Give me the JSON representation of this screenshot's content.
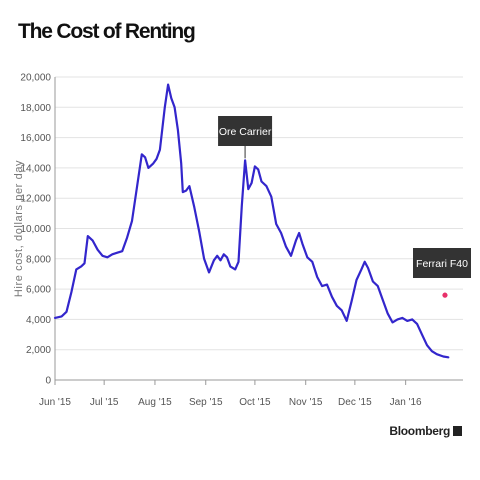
{
  "header": {
    "title": "The Cost of Renting"
  },
  "footer": {
    "source": "Bloomberg"
  },
  "colors": {
    "line": "#3326cc",
    "marker": "#e8306a",
    "annotation_bg": "#333333",
    "grid": "#e3e3e3",
    "axis": "#999999"
  },
  "chart_data": {
    "type": "line",
    "title": "The Cost of Renting",
    "xlabel": "",
    "ylabel": "Hire cost, dollars per day",
    "ylim": [
      0,
      20000
    ],
    "yticks": [
      0,
      2000,
      4000,
      6000,
      8000,
      10000,
      12000,
      14000,
      16000,
      18000,
      20000
    ],
    "ytick_labels": [
      "0",
      "2,000",
      "4,000",
      "6,000",
      "8,000",
      "10,000",
      "12,000",
      "14,000",
      "16,000",
      "18,000",
      "20,000"
    ],
    "xlim": [
      "2015-06-01",
      "2016-02-05"
    ],
    "xticks": [
      "2015-06-01",
      "2015-07-01",
      "2015-08-01",
      "2015-09-01",
      "2015-10-01",
      "2015-11-01",
      "2015-12-01",
      "2016-01-01"
    ],
    "xtick_labels": [
      "Jun '15",
      "Jul '15",
      "Aug '15",
      "Sep '15",
      "Oct '15",
      "Nov '15",
      "Dec '15",
      "Jan '16"
    ],
    "grid": true,
    "series": [
      {
        "color": "#3326cc",
        "points": [
          [
            "2015-06-01",
            4100
          ],
          [
            "2015-06-05",
            4200
          ],
          [
            "2015-06-08",
            4500
          ],
          [
            "2015-06-11",
            5800
          ],
          [
            "2015-06-14",
            7300
          ],
          [
            "2015-06-17",
            7500
          ],
          [
            "2015-06-19",
            7700
          ],
          [
            "2015-06-21",
            9500
          ],
          [
            "2015-06-24",
            9200
          ],
          [
            "2015-06-27",
            8600
          ],
          [
            "2015-06-30",
            8200
          ],
          [
            "2015-07-03",
            8100
          ],
          [
            "2015-07-06",
            8300
          ],
          [
            "2015-07-09",
            8400
          ],
          [
            "2015-07-12",
            8500
          ],
          [
            "2015-07-15",
            9400
          ],
          [
            "2015-07-18",
            10500
          ],
          [
            "2015-07-21",
            12700
          ],
          [
            "2015-07-24",
            14900
          ],
          [
            "2015-07-26",
            14700
          ],
          [
            "2015-07-28",
            14000
          ],
          [
            "2015-07-31",
            14300
          ],
          [
            "2015-08-02",
            14600
          ],
          [
            "2015-08-04",
            15200
          ],
          [
            "2015-08-07",
            18000
          ],
          [
            "2015-08-09",
            19500
          ],
          [
            "2015-08-11",
            18600
          ],
          [
            "2015-08-13",
            18000
          ],
          [
            "2015-08-15",
            16500
          ],
          [
            "2015-08-17",
            14300
          ],
          [
            "2015-08-18",
            12400
          ],
          [
            "2015-08-20",
            12500
          ],
          [
            "2015-08-22",
            12800
          ],
          [
            "2015-08-25",
            11400
          ],
          [
            "2015-08-28",
            9800
          ],
          [
            "2015-08-31",
            8000
          ],
          [
            "2015-09-03",
            7100
          ],
          [
            "2015-09-06",
            7900
          ],
          [
            "2015-09-08",
            8200
          ],
          [
            "2015-09-10",
            7900
          ],
          [
            "2015-09-12",
            8300
          ],
          [
            "2015-09-14",
            8100
          ],
          [
            "2015-09-16",
            7500
          ],
          [
            "2015-09-19",
            7300
          ],
          [
            "2015-09-21",
            7800
          ],
          [
            "2015-09-23",
            11500
          ],
          [
            "2015-09-25",
            14500
          ],
          [
            "2015-09-27",
            12600
          ],
          [
            "2015-09-29",
            13000
          ],
          [
            "2015-10-01",
            14100
          ],
          [
            "2015-10-03",
            13900
          ],
          [
            "2015-10-05",
            13100
          ],
          [
            "2015-10-08",
            12800
          ],
          [
            "2015-10-11",
            12100
          ],
          [
            "2015-10-14",
            10300
          ],
          [
            "2015-10-17",
            9700
          ],
          [
            "2015-10-20",
            8800
          ],
          [
            "2015-10-23",
            8200
          ],
          [
            "2015-10-26",
            9200
          ],
          [
            "2015-10-28",
            9700
          ],
          [
            "2015-10-30",
            9000
          ],
          [
            "2015-11-02",
            8100
          ],
          [
            "2015-11-05",
            7800
          ],
          [
            "2015-11-08",
            6800
          ],
          [
            "2015-11-11",
            6200
          ],
          [
            "2015-11-14",
            6300
          ],
          [
            "2015-11-17",
            5500
          ],
          [
            "2015-11-20",
            4900
          ],
          [
            "2015-11-23",
            4600
          ],
          [
            "2015-11-26",
            3900
          ],
          [
            "2015-11-29",
            5200
          ],
          [
            "2015-12-02",
            6600
          ],
          [
            "2015-12-05",
            7300
          ],
          [
            "2015-12-07",
            7800
          ],
          [
            "2015-12-09",
            7400
          ],
          [
            "2015-12-12",
            6500
          ],
          [
            "2015-12-15",
            6200
          ],
          [
            "2015-12-18",
            5300
          ],
          [
            "2015-12-21",
            4400
          ],
          [
            "2015-12-24",
            3800
          ],
          [
            "2015-12-27",
            4000
          ],
          [
            "2015-12-30",
            4100
          ],
          [
            "2016-01-02",
            3900
          ],
          [
            "2016-01-05",
            4000
          ],
          [
            "2016-01-08",
            3700
          ],
          [
            "2016-01-11",
            3000
          ],
          [
            "2016-01-14",
            2300
          ],
          [
            "2016-01-17",
            1900
          ],
          [
            "2016-01-20",
            1700
          ],
          [
            "2016-01-24",
            1550
          ],
          [
            "2016-01-27",
            1500
          ]
        ]
      }
    ],
    "annotations": [
      {
        "label": "Ore Carrier",
        "x": "2015-09-25",
        "y": 14500,
        "style": "callout-box"
      },
      {
        "label": "Ferrari F40",
        "x": "2016-01-25",
        "y": 5600,
        "style": "marker",
        "color": "#e8306a"
      }
    ]
  }
}
